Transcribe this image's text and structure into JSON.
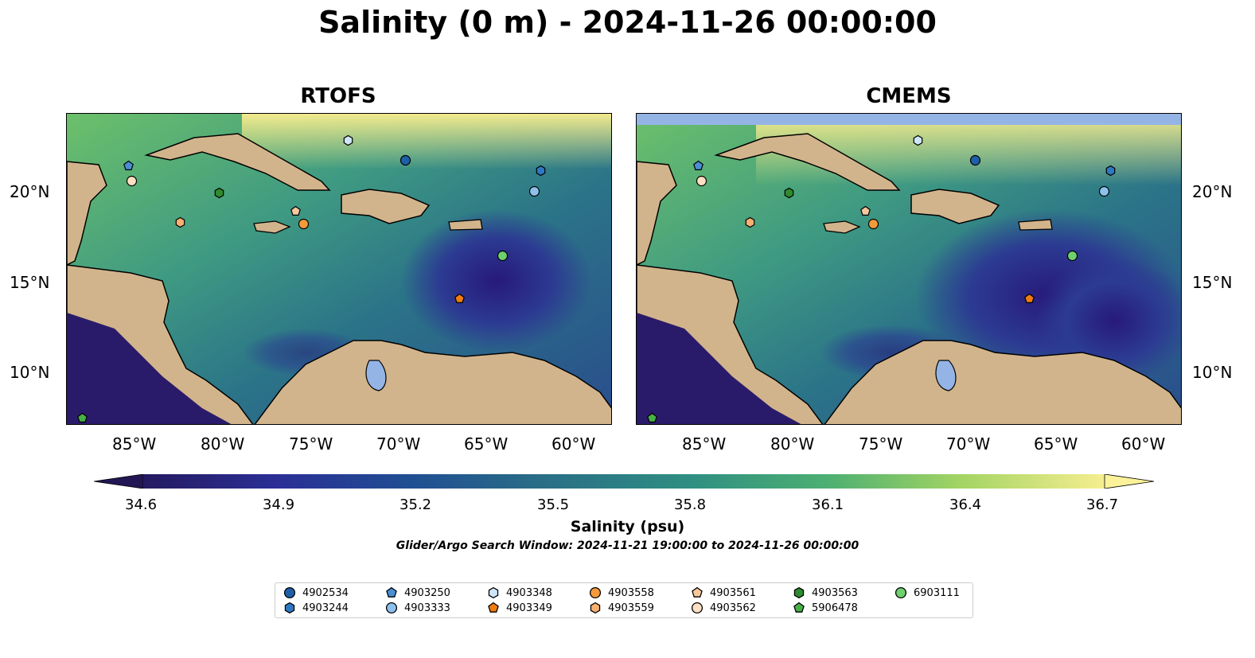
{
  "title": "Salinity (0 m) - 2024-11-26 00:00:00",
  "panels": [
    {
      "id": "rtofs",
      "title": "RTOFS"
    },
    {
      "id": "cmems",
      "title": "CMEMS"
    }
  ],
  "lon_ticks": [
    "85°W",
    "80°W",
    "75°W",
    "70°W",
    "65°W",
    "60°W"
  ],
  "lat_ticks": [
    "20°N",
    "15°N",
    "10°N"
  ],
  "colorbar": {
    "ticks": [
      "34.6",
      "34.9",
      "35.2",
      "35.5",
      "35.8",
      "36.1",
      "36.4",
      "36.7"
    ],
    "label": "Salinity (psu)",
    "min": 34.6,
    "max": 36.7
  },
  "search_window": "Glider/Argo Search Window: 2024-11-21 19:00:00 to 2024-11-26 00:00:00",
  "colors": {
    "land": "#d2b48c",
    "ocean_low": "#2a1b6a",
    "ocean_mid": "#2f7f8a",
    "ocean_high": "#f2ea8e",
    "nodata": "#95b4e6"
  },
  "floats": [
    {
      "id": "4902534",
      "marker": "circle",
      "color": "#1f5fa8"
    },
    {
      "id": "4903244",
      "marker": "hexagon",
      "color": "#2e78c4"
    },
    {
      "id": "4903250",
      "marker": "pentagon",
      "color": "#4a8fd6"
    },
    {
      "id": "4903333",
      "marker": "circle",
      "color": "#8ec0ec"
    },
    {
      "id": "4903348",
      "marker": "hexagon",
      "color": "#cfe6fa"
    },
    {
      "id": "4903349",
      "marker": "pentagon",
      "color": "#f07c12"
    },
    {
      "id": "4903558",
      "marker": "circle",
      "color": "#f59a3c"
    },
    {
      "id": "4903559",
      "marker": "hexagon",
      "color": "#f7b070"
    },
    {
      "id": "4903561",
      "marker": "pentagon",
      "color": "#f8c79c"
    },
    {
      "id": "4903562",
      "marker": "circle",
      "color": "#fde0c4"
    },
    {
      "id": "4903563",
      "marker": "hexagon",
      "color": "#2e8b2e"
    },
    {
      "id": "5906478",
      "marker": "pentagon",
      "color": "#47b047"
    },
    {
      "id": "6903111",
      "marker": "circle",
      "color": "#6fd06f"
    }
  ]
}
